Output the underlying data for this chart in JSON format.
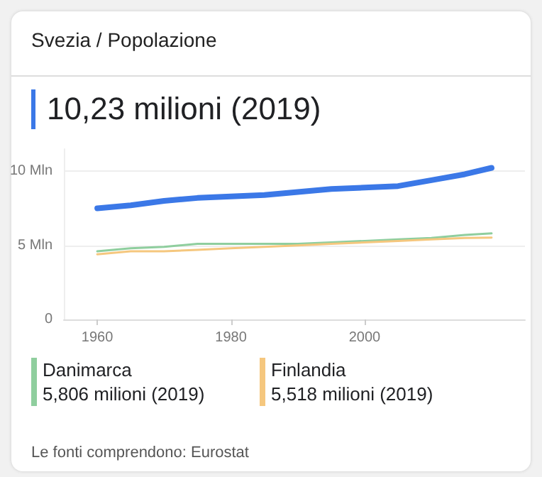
{
  "chart_data": {
    "type": "line",
    "title": "Svezia / Popolazione",
    "subtitle": "10,23 milioni (2019)",
    "x": [
      1960,
      1965,
      1970,
      1975,
      1980,
      1985,
      1990,
      1995,
      2000,
      2005,
      2010,
      2015,
      2019
    ],
    "series": [
      {
        "color": "#3b78e7",
        "values": [
          7.5,
          7.7,
          8.0,
          8.2,
          8.3,
          8.4,
          8.6,
          8.8,
          8.9,
          9.0,
          9.4,
          9.8,
          10.23
        ]
      },
      {
        "name": "Danimarca",
        "color": "#8fce9e",
        "values": [
          4.6,
          4.8,
          4.9,
          5.1,
          5.1,
          5.1,
          5.1,
          5.2,
          5.3,
          5.4,
          5.5,
          5.7,
          5.806
        ]
      },
      {
        "name": "Finlandia",
        "color": "#f5c77e",
        "values": [
          4.4,
          4.6,
          4.6,
          4.7,
          4.8,
          4.9,
          5.0,
          5.1,
          5.2,
          5.3,
          5.4,
          5.5,
          5.518
        ]
      }
    ],
    "annotations": [
      "5,806 milioni (2019)",
      "5,518 milioni (2019)",
      "Le fonti comprendono: Eurostat"
    ],
    "xlim": [
      1955,
      2024
    ],
    "xticks": [
      1960,
      1980,
      2000
    ],
    "ylim": [
      0,
      11.5
    ],
    "yticks": [
      {
        "value": 0,
        "label": "0"
      },
      {
        "value": 5,
        "label": "5 Mln"
      },
      {
        "value": 10,
        "label": "10 Mln"
      }
    ],
    "grid": "y",
    "legend": "bottom",
    "marker": "none",
    "line_style": "solid"
  }
}
